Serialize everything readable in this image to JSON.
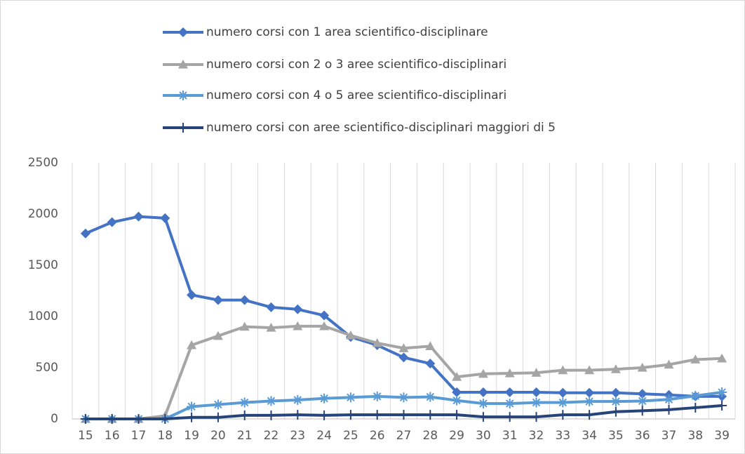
{
  "chart_data": {
    "type": "line",
    "categories": [
      "15",
      "16",
      "17",
      "18",
      "19",
      "20",
      "21",
      "22",
      "23",
      "24",
      "25",
      "26",
      "27",
      "28",
      "29",
      "30",
      "31",
      "32",
      "33",
      "34",
      "35",
      "36",
      "37",
      "38",
      "39"
    ],
    "series": [
      {
        "name": "numero corsi con 1 area scientifico-disciplinare",
        "color": "#4472c4",
        "marker": "diamond",
        "values": [
          1810,
          1920,
          1975,
          1960,
          1210,
          1160,
          1160,
          1090,
          1070,
          1010,
          800,
          720,
          600,
          540,
          260,
          260,
          260,
          260,
          255,
          255,
          255,
          245,
          235,
          220,
          220
        ]
      },
      {
        "name": "numero corsi con 2 o 3 aree scientifico-disciplinari",
        "color": "#a5a5a5",
        "marker": "triangle",
        "values": [
          0,
          0,
          0,
          30,
          720,
          810,
          900,
          890,
          905,
          905,
          815,
          740,
          690,
          710,
          410,
          440,
          445,
          450,
          475,
          475,
          485,
          500,
          530,
          580,
          590
        ]
      },
      {
        "name": "numero corsi con 4 o 5 aree scientifico-disciplinari",
        "color": "#5b9bd5",
        "marker": "star",
        "values": [
          0,
          0,
          0,
          0,
          120,
          140,
          160,
          175,
          185,
          200,
          210,
          220,
          210,
          215,
          180,
          150,
          150,
          160,
          160,
          170,
          170,
          175,
          190,
          225,
          260
        ]
      },
      {
        "name": "numero corsi con aree scientifico-disciplinari maggiori di 5",
        "color": "#264478",
        "marker": "plus",
        "values": [
          0,
          0,
          0,
          0,
          15,
          15,
          35,
          35,
          40,
          35,
          40,
          40,
          40,
          40,
          40,
          20,
          20,
          20,
          40,
          40,
          70,
          80,
          90,
          110,
          130
        ]
      }
    ],
    "ylim": [
      0,
      2500
    ],
    "yticks": [
      0,
      500,
      1000,
      1500,
      2000,
      2500
    ],
    "grid": "vertical",
    "legend": "top"
  }
}
